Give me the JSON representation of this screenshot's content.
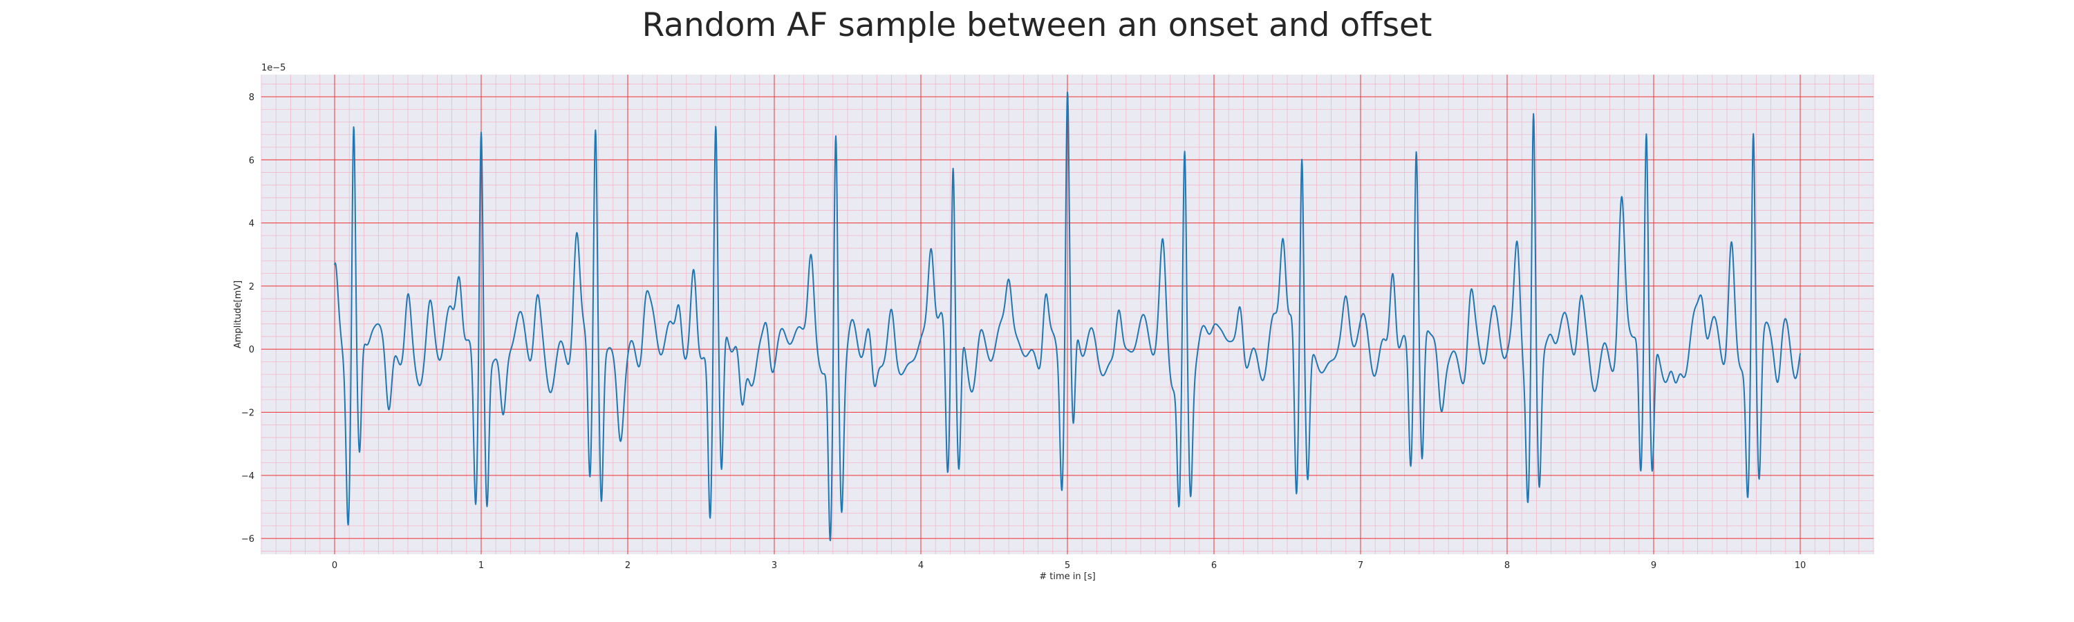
{
  "chart_data": {
    "type": "line",
    "title": "Random AF sample between an onset and offset",
    "xlabel": "# time in [s]",
    "ylabel": "Amplitude[mV]",
    "y_scale_note": "1e−5",
    "xlim": [
      -0.5,
      10.5
    ],
    "ylim": [
      -6.5,
      8.7
    ],
    "x_ticks": [
      0,
      1,
      2,
      3,
      4,
      5,
      6,
      7,
      8,
      9,
      10
    ],
    "x_tick_labels": [
      "0",
      "1",
      "2",
      "3",
      "4",
      "5",
      "6",
      "7",
      "8",
      "9",
      "10"
    ],
    "y_ticks": [
      -6,
      -4,
      -2,
      0,
      2,
      4,
      6,
      8
    ],
    "y_tick_labels": [
      "−6",
      "−4",
      "−2",
      "0",
      "2",
      "4",
      "6",
      "8"
    ],
    "grid": true,
    "background_color": "#eaeaf2",
    "major_grid_color": "#ee3333",
    "minor_grid_color": "#f2b8c8",
    "line_color": "#1f77b4",
    "series": [
      {
        "beats": [
          {
            "t": 0.13,
            "peak": 7.7,
            "dip1": -4.4,
            "dip2": -3.8
          },
          {
            "t": 1.0,
            "peak": 7.8,
            "dip1": -4.4,
            "dip2": -4.5
          },
          {
            "t": 1.78,
            "peak": 6.6,
            "dip1": -4.5,
            "dip2": -4.9
          },
          {
            "t": 2.6,
            "peak": 6.9,
            "dip1": -5.2,
            "dip2": -4.8
          },
          {
            "t": 3.42,
            "peak": 7.3,
            "dip1": -6.0,
            "dip2": -4.1
          },
          {
            "t": 4.22,
            "peak": 6.5,
            "dip1": -4.1,
            "dip2": -4.0
          },
          {
            "t": 5.0,
            "peak": 7.8,
            "dip1": -3.9,
            "dip2": -3.7
          },
          {
            "t": 5.8,
            "peak": 6.3,
            "dip1": -4.7,
            "dip2": -3.8
          },
          {
            "t": 6.6,
            "peak": 6.6,
            "dip1": -5.3,
            "dip2": -3.8
          },
          {
            "t": 7.38,
            "peak": 6.2,
            "dip1": -3.6,
            "dip2": -4.3
          },
          {
            "t": 8.18,
            "peak": 8.0,
            "dip1": -4.2,
            "dip2": -4.0
          },
          {
            "t": 8.95,
            "peak": 6.7,
            "dip1": -4.4,
            "dip2": -4.0
          },
          {
            "t": 9.68,
            "peak": 7.2,
            "dip1": -4.3,
            "dip2": -4.2
          }
        ],
        "bumps": [
          {
            "t": 0.0,
            "a": 3.1
          },
          {
            "t": 0.25,
            "a": 0.3
          },
          {
            "t": 0.37,
            "a": -2.3
          },
          {
            "t": 0.5,
            "a": 1.9
          },
          {
            "t": 0.65,
            "a": 0.8
          },
          {
            "t": 0.85,
            "a": 2.6
          },
          {
            "t": 1.15,
            "a": -2.4
          },
          {
            "t": 1.38,
            "a": 1.4
          },
          {
            "t": 1.65,
            "a": 3.2
          },
          {
            "t": 1.95,
            "a": -1.8
          },
          {
            "t": 2.12,
            "a": 1.4
          },
          {
            "t": 2.35,
            "a": 2.0
          },
          {
            "t": 2.45,
            "a": 3.0
          },
          {
            "t": 2.78,
            "a": -2.6
          },
          {
            "t": 2.95,
            "a": 1.4
          },
          {
            "t": 3.25,
            "a": 2.7
          },
          {
            "t": 3.68,
            "a": -2.1
          },
          {
            "t": 3.8,
            "a": 1.2
          },
          {
            "t": 4.07,
            "a": 3.1
          },
          {
            "t": 4.4,
            "a": 0.4
          },
          {
            "t": 4.6,
            "a": 1.7
          },
          {
            "t": 4.85,
            "a": 2.6
          },
          {
            "t": 5.35,
            "a": 1.7
          },
          {
            "t": 5.65,
            "a": 2.7
          },
          {
            "t": 6.0,
            "a": 0.4
          },
          {
            "t": 6.18,
            "a": 1.9
          },
          {
            "t": 6.47,
            "a": 3.7
          },
          {
            "t": 6.9,
            "a": 1.0
          },
          {
            "t": 7.22,
            "a": 3.7
          },
          {
            "t": 7.55,
            "a": -1.9
          },
          {
            "t": 7.75,
            "a": 1.8
          },
          {
            "t": 8.07,
            "a": 3.4
          },
          {
            "t": 8.3,
            "a": 0.4
          },
          {
            "t": 8.5,
            "a": 1.3
          },
          {
            "t": 8.78,
            "a": 4.3
          },
          {
            "t": 9.15,
            "a": -1.2
          },
          {
            "t": 9.33,
            "a": 1.5
          },
          {
            "t": 9.53,
            "a": 3.7
          },
          {
            "t": 9.85,
            "a": -1.2
          },
          {
            "t": 10.0,
            "a": 0.3
          }
        ],
        "osc_amplitude": 0.8
      }
    ]
  }
}
